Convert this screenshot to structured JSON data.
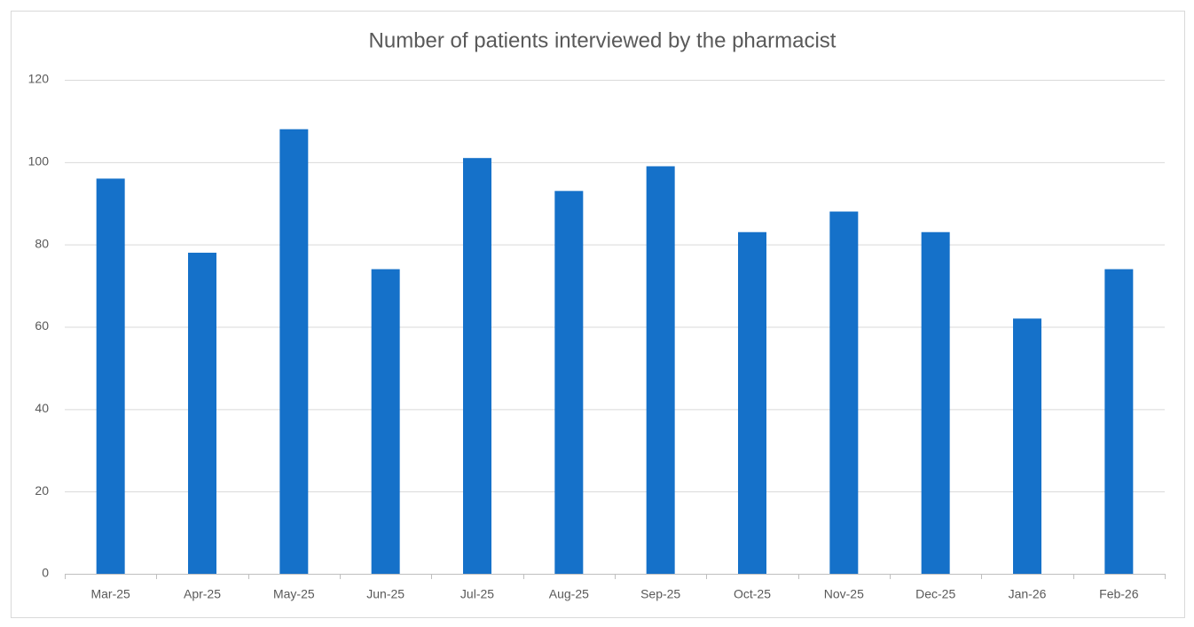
{
  "chart_data": {
    "type": "bar",
    "title": "Number of patients interviewed by the pharmacist",
    "categories": [
      "Mar-25",
      "Apr-25",
      "May-25",
      "Jun-25",
      "Jul-25",
      "Aug-25",
      "Sep-25",
      "Oct-25",
      "Nov-25",
      "Dec-25",
      "Jan-26",
      "Feb-26"
    ],
    "values": [
      96,
      78,
      108,
      74,
      101,
      93,
      99,
      83,
      88,
      83,
      62,
      74
    ],
    "color": "#1571c9",
    "ylim": [
      0,
      120
    ],
    "yticks": [
      0,
      20,
      40,
      60,
      80,
      100,
      120
    ],
    "grid": true
  }
}
